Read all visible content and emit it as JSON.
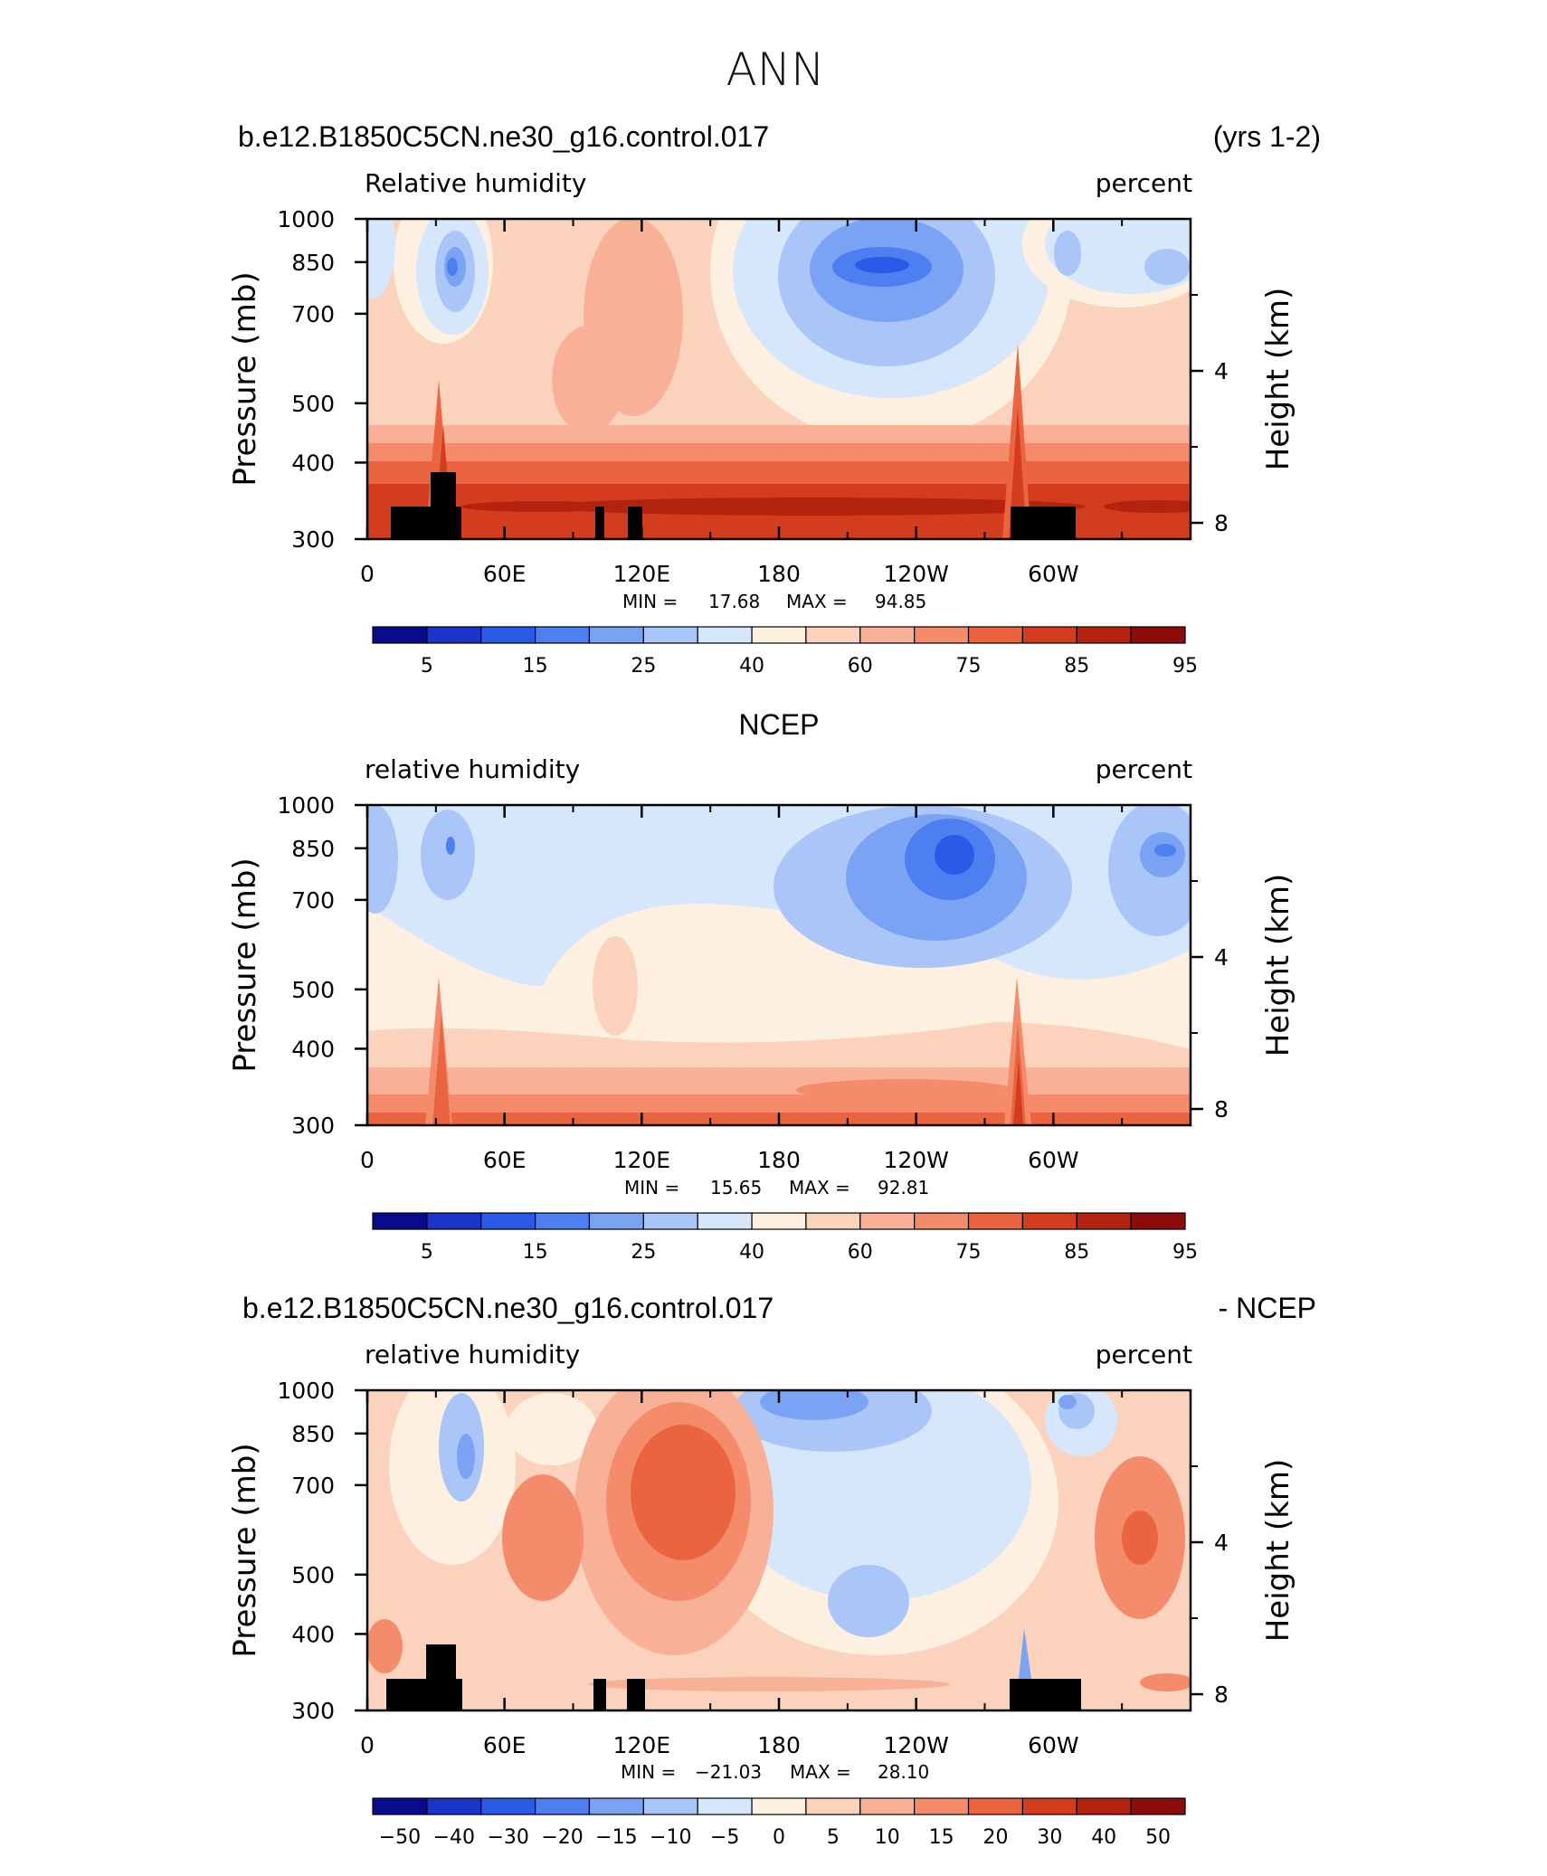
{
  "figure": {
    "title": "ANN"
  },
  "colors": {
    "rh_palette": [
      "#0a0a8c",
      "#1a33c8",
      "#2a5ae6",
      "#4d7ff0",
      "#7ba3f4",
      "#aac6f8",
      "#d6e6fb",
      "#fdf0e0",
      "#fbd3bd",
      "#f8b196",
      "#f48c6c",
      "#ea6440",
      "#d43c1e",
      "#b3230f",
      "#8c0b0b"
    ],
    "diff_palette": [
      "#0a0a8c",
      "#1a33c8",
      "#2a5ae6",
      "#4d7ff0",
      "#7ba3f4",
      "#aac6f8",
      "#d6e6fb",
      "#fdf0e0",
      "#fbd3bd",
      "#f8b196",
      "#f48c6c",
      "#ea6440",
      "#d43c1e",
      "#b3230f",
      "#8c0b0b"
    ],
    "terrain": "#000000"
  },
  "chart_data": [
    {
      "type": "heatmap",
      "header_left": "b.e12.B1850C5CN.ne30_g16.control.017",
      "header_right": "(yrs 1-2)",
      "variable_label": "Relative humidity",
      "units": "percent",
      "ylabel": "Pressure (mb)",
      "ylabel_right": "Height (km)",
      "y_ticks": [
        "300",
        "400",
        "500",
        "700",
        "850",
        "1000"
      ],
      "y_right_ticks": [
        "8",
        "4"
      ],
      "x_ticks": [
        "0",
        "60E",
        "120E",
        "180",
        "120W",
        "60W"
      ],
      "min_label": "MIN =",
      "min_value": "17.68",
      "max_label": "MAX =",
      "max_value": "94.85",
      "colorbar_labels": [
        "5",
        "15",
        "25",
        "40",
        "60",
        "75",
        "85",
        "95"
      ],
      "field": "model"
    },
    {
      "type": "heatmap",
      "header_center": "NCEP",
      "variable_label": "relative humidity",
      "units": "percent",
      "ylabel": "Pressure (mb)",
      "ylabel_right": "Height (km)",
      "y_ticks": [
        "300",
        "400",
        "500",
        "700",
        "850",
        "1000"
      ],
      "y_right_ticks": [
        "8",
        "4"
      ],
      "x_ticks": [
        "0",
        "60E",
        "120E",
        "180",
        "120W",
        "60W"
      ],
      "min_label": "MIN =",
      "min_value": "15.65",
      "max_label": "MAX =",
      "max_value": "92.81",
      "colorbar_labels": [
        "5",
        "15",
        "25",
        "40",
        "60",
        "75",
        "85",
        "95"
      ],
      "field": "obs"
    },
    {
      "type": "heatmap",
      "header_left": "b.e12.B1850C5CN.ne30_g16.control.017",
      "header_right": "- NCEP",
      "variable_label": "relative humidity",
      "units": "percent",
      "ylabel": "Pressure (mb)",
      "ylabel_right": "Height (km)",
      "y_ticks": [
        "300",
        "400",
        "500",
        "700",
        "850",
        "1000"
      ],
      "y_right_ticks": [
        "8",
        "4"
      ],
      "x_ticks": [
        "0",
        "60E",
        "120E",
        "180",
        "120W",
        "60W"
      ],
      "min_label": "MIN =",
      "min_value": "−21.03",
      "max_label": "MAX =",
      "max_value": "28.10",
      "colorbar_labels": [
        "−50",
        "−40",
        "−30",
        "−20",
        "−15",
        "−10",
        "−5",
        "0",
        "5",
        "10",
        "15",
        "20",
        "30",
        "40",
        "50"
      ],
      "field": "diff"
    }
  ]
}
